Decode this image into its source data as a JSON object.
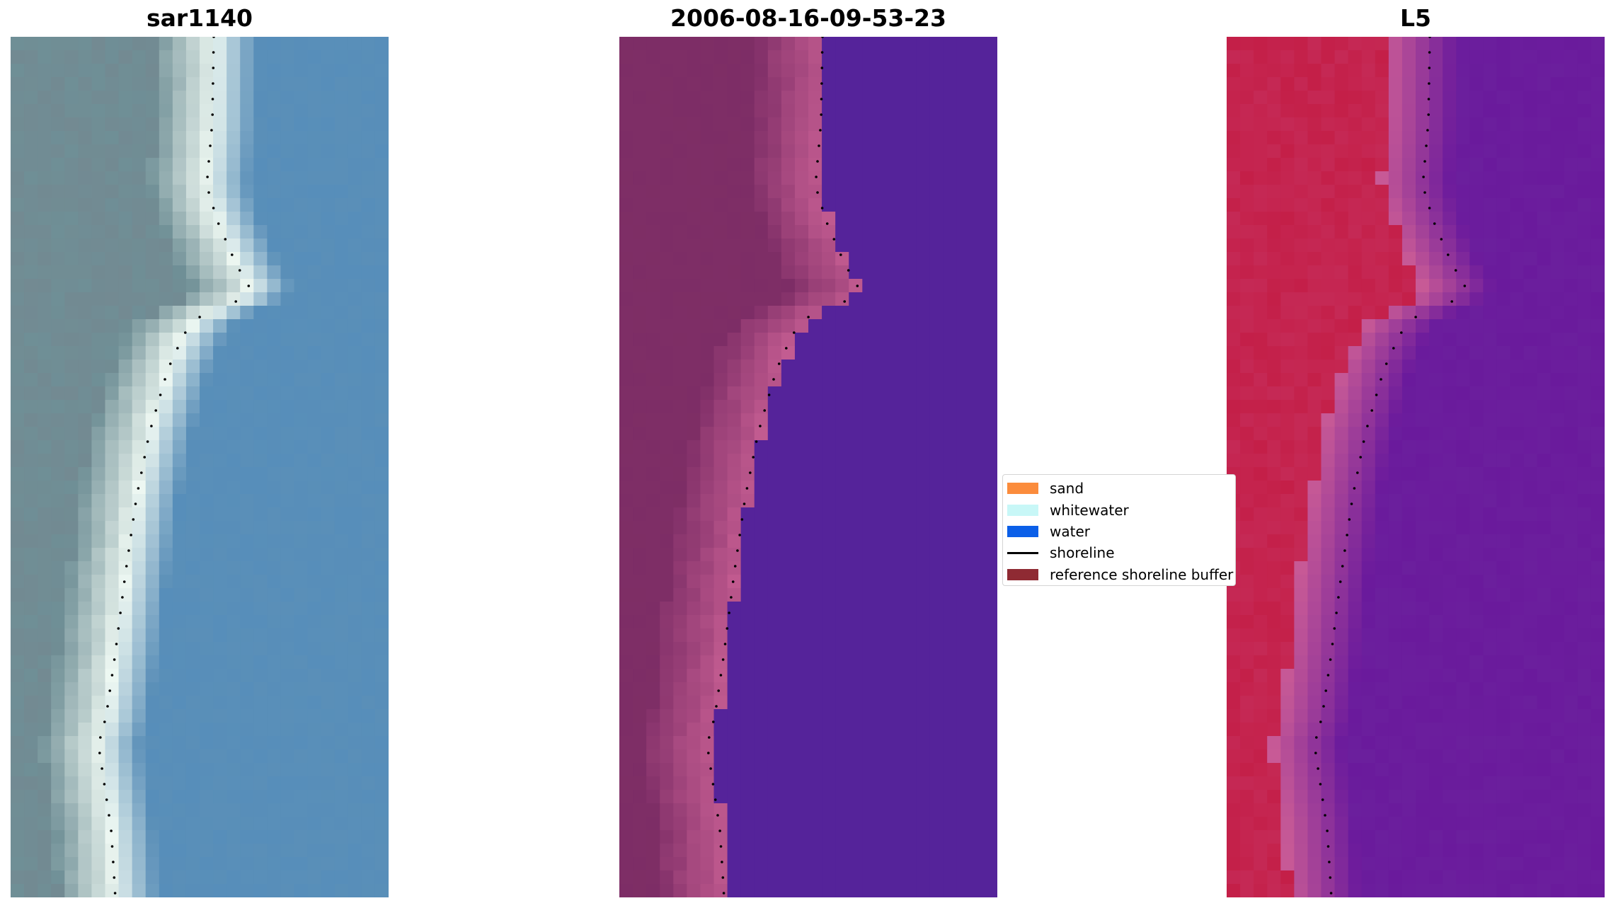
{
  "panels": [
    {
      "title": "sar1140"
    },
    {
      "title": "2006-08-16-09-53-23"
    },
    {
      "title": "L5"
    }
  ],
  "legend": {
    "items": [
      {
        "label": "sand",
        "color": "#fb8c3c",
        "kind": "patch"
      },
      {
        "label": "whitewater",
        "color": "#c8f7f7",
        "kind": "patch"
      },
      {
        "label": "water",
        "color": "#0b5fe8",
        "kind": "patch"
      },
      {
        "label": "shoreline",
        "color": "#000000",
        "kind": "line"
      },
      {
        "label": "reference shoreline buffer",
        "color": "#8f2a33",
        "kind": "patch"
      }
    ]
  },
  "colors": {
    "rgb_water": "#5a8fb8",
    "rgb_land": "#6f8f96",
    "rgb_whitewater": "#eef8f2",
    "class_water": "#55239a",
    "class_land": "#7d2d66",
    "class_buffer": "#c05a8f",
    "index_land": "#c41f48",
    "index_water": "#6a1a9c"
  }
}
